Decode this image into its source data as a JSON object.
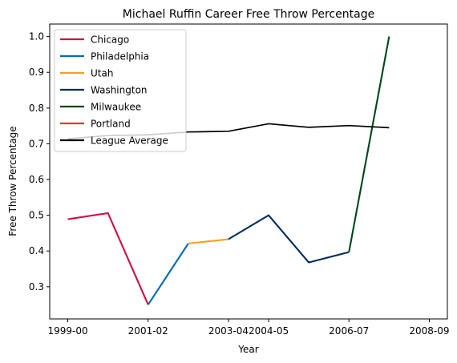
{
  "chart_data": {
    "type": "line",
    "title": "Michael Ruffin Career Free Throw Percentage",
    "xlabel": "Year",
    "ylabel": "Free Throw Percentage",
    "x_categories": [
      "1999-00",
      "2000-01",
      "2001-02",
      "2002-03",
      "2003-04",
      "2004-05",
      "2005-06",
      "2006-07",
      "2007-08",
      "2008-09"
    ],
    "xtick_labels": [
      "1999-00",
      "2001-02",
      "2003-04",
      "2004-05",
      "2006-07",
      "2008-09"
    ],
    "ylim": [
      0.21,
      1.035
    ],
    "yticks": [
      0.3,
      0.4,
      0.5,
      0.6,
      0.7,
      0.8,
      0.9,
      1.0
    ],
    "ytick_labels": [
      "0.3",
      "0.4",
      "0.5",
      "0.6",
      "0.7",
      "0.8",
      "0.9",
      "1.0"
    ],
    "legend_position": "top-left",
    "grid": false,
    "series": [
      {
        "name": "Chicago",
        "color": "#CE1141",
        "points": [
          [
            "1999-00",
            0.489
          ],
          [
            "2000-01",
            0.506
          ],
          [
            "2001-02",
            0.25
          ]
        ]
      },
      {
        "name": "Philadelphia",
        "color": "#006BB6",
        "points": [
          [
            "2001-02",
            0.25
          ],
          [
            "2002-03",
            0.421
          ]
        ]
      },
      {
        "name": "Utah",
        "color": "#F9A01B",
        "points": [
          [
            "2002-03",
            0.421
          ],
          [
            "2003-04",
            0.433
          ]
        ]
      },
      {
        "name": "Washington",
        "color": "#002B5C",
        "points": [
          [
            "2003-04",
            0.433
          ],
          [
            "2004-05",
            0.5
          ],
          [
            "2005-06",
            0.368
          ],
          [
            "2006-07",
            0.397
          ]
        ]
      },
      {
        "name": "Milwaukee",
        "color": "#00471B",
        "points": [
          [
            "2006-07",
            0.397
          ],
          [
            "2007-08",
            1.0
          ]
        ]
      },
      {
        "name": "Portland",
        "color": "#E03A3E",
        "points": []
      },
      {
        "name": "League Average",
        "color": "#000000",
        "points": [
          [
            "1999-00",
            0.714
          ],
          [
            "2000-01",
            0.723
          ],
          [
            "2001-02",
            0.725
          ],
          [
            "2002-03",
            0.733
          ],
          [
            "2003-04",
            0.735
          ],
          [
            "2004-05",
            0.756
          ],
          [
            "2005-06",
            0.746
          ],
          [
            "2006-07",
            0.751
          ],
          [
            "2007-08",
            0.745
          ]
        ]
      }
    ]
  }
}
